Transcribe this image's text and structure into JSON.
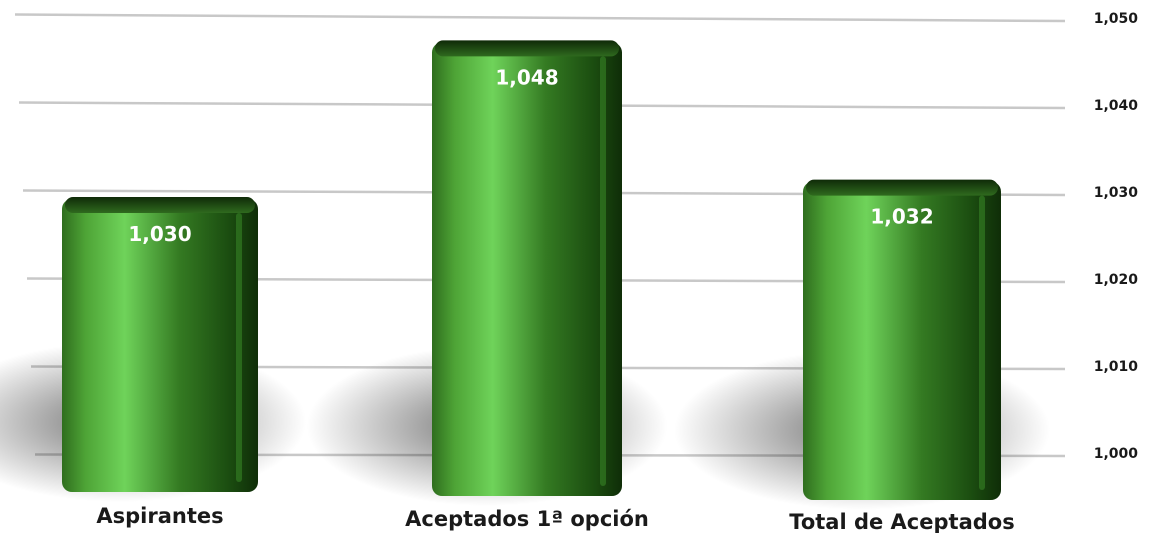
{
  "chart_data": {
    "type": "bar",
    "categories": [
      "Aspirantes",
      "Aceptados 1ª opción",
      "Total de Aceptados"
    ],
    "series": [
      {
        "values": [
          1030,
          1048,
          1032
        ]
      }
    ],
    "value_labels": [
      "1,030",
      "1,048",
      "1,032"
    ],
    "ylim": [
      1000,
      1050
    ],
    "yticks": [
      1000,
      1010,
      1020,
      1030,
      1040,
      1050
    ],
    "ytick_labels": [
      "1,000",
      "1,010",
      "1,020",
      "1,030",
      "1,040",
      "1,050"
    ],
    "y_axis_side": "right",
    "grid": true,
    "legend": "none",
    "colors": {
      "bar_light": "#6fd35a",
      "bar_mid": "#3f8f2a",
      "bar_dark": "#143d0c",
      "grid": "#c8c8c8"
    }
  }
}
